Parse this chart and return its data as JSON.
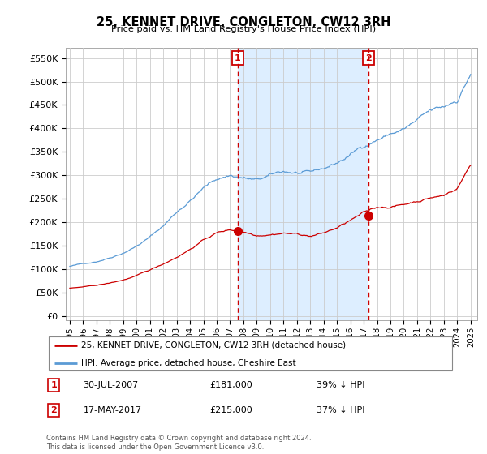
{
  "title": "25, KENNET DRIVE, CONGLETON, CW12 3RH",
  "subtitle": "Price paid vs. HM Land Registry's House Price Index (HPI)",
  "ytick_labels": [
    "£0",
    "£50K",
    "£100K",
    "£150K",
    "£200K",
    "£250K",
    "£300K",
    "£350K",
    "£400K",
    "£450K",
    "£500K",
    "£550K"
  ],
  "yticks": [
    0,
    50000,
    100000,
    150000,
    200000,
    250000,
    300000,
    350000,
    400000,
    450000,
    500000,
    550000
  ],
  "ylim": [
    -8000,
    572000
  ],
  "xlim_start": 1994.7,
  "xlim_end": 2025.5,
  "hpi_color": "#5b9bd5",
  "price_color": "#cc0000",
  "shade_color": "#ddeeff",
  "marker1_date": 2007.58,
  "marker1_price": 181000,
  "marker1_label": "30-JUL-2007",
  "marker1_amount": "£181,000",
  "marker1_pct": "39% ↓ HPI",
  "marker2_date": 2017.37,
  "marker2_price": 215000,
  "marker2_label": "17-MAY-2017",
  "marker2_amount": "£215,000",
  "marker2_pct": "37% ↓ HPI",
  "legend_line1": "25, KENNET DRIVE, CONGLETON, CW12 3RH (detached house)",
  "legend_line2": "HPI: Average price, detached house, Cheshire East",
  "footer": "Contains HM Land Registry data © Crown copyright and database right 2024.\nThis data is licensed under the Open Government Licence v3.0."
}
